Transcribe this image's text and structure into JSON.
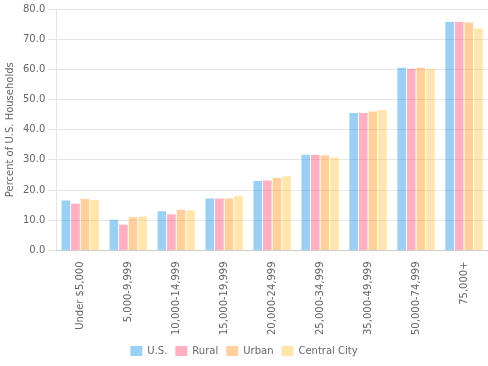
{
  "chart_data": {
    "type": "bar",
    "categories": [
      "Under $5,000",
      "5,000-9,999",
      "10,000-14,999",
      "15,000-19,999",
      "20,000-24,999",
      "25,000-34,999",
      "35,000-49,999",
      "50,000-74,999",
      "75,000+"
    ],
    "series": [
      {
        "name": "U.S.",
        "values": [
          16.5,
          10.2,
          13.0,
          17.2,
          23.0,
          31.7,
          45.5,
          60.5,
          75.7
        ]
      },
      {
        "name": "Rural",
        "values": [
          15.5,
          8.5,
          12.0,
          17.2,
          23.2,
          31.7,
          45.5,
          60.2,
          75.7
        ]
      },
      {
        "name": "Urban",
        "values": [
          17.0,
          11.0,
          13.5,
          17.2,
          24.0,
          31.5,
          46.0,
          60.5,
          75.5
        ]
      },
      {
        "name": "Central City",
        "values": [
          16.7,
          11.2,
          13.2,
          18.0,
          24.5,
          30.8,
          46.5,
          60.2,
          73.5
        ]
      }
    ],
    "ylabel": "Percent of U.S. Households",
    "ylim": [
      0,
      80.0
    ],
    "yticks": [
      {
        "value": 0,
        "label": "0.0"
      },
      {
        "value": 10,
        "label": "10.0"
      },
      {
        "value": 20,
        "label": "20.0"
      },
      {
        "value": 30,
        "label": "30.0"
      },
      {
        "value": 40,
        "label": "40.0"
      },
      {
        "value": 50,
        "label": "50.0"
      },
      {
        "value": 60,
        "label": "60.0"
      },
      {
        "value": 70,
        "label": "70.0"
      },
      {
        "value": 80,
        "label": "80.0"
      }
    ],
    "grid": true,
    "legend": "bottom"
  }
}
